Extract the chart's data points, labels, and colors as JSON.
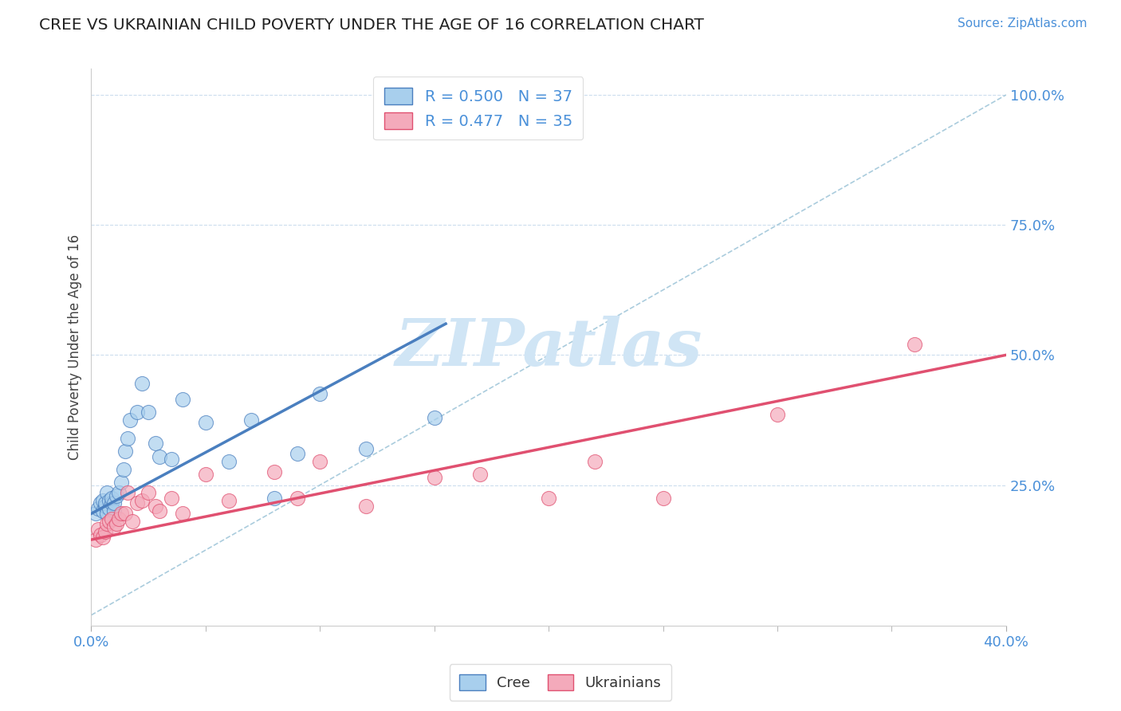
{
  "title": "CREE VS UKRAINIAN CHILD POVERTY UNDER THE AGE OF 16 CORRELATION CHART",
  "source": "Source: ZipAtlas.com",
  "ylabel": "Child Poverty Under the Age of 16",
  "xlim": [
    0.0,
    0.4
  ],
  "ylim": [
    -0.02,
    1.05
  ],
  "ytick_labels": [
    "25.0%",
    "50.0%",
    "75.0%",
    "100.0%"
  ],
  "ytick_values": [
    0.25,
    0.5,
    0.75,
    1.0
  ],
  "cree_R": 0.5,
  "cree_N": 37,
  "ukr_R": 0.477,
  "ukr_N": 35,
  "cree_color": "#A8CFED",
  "ukr_color": "#F4AABB",
  "cree_line_color": "#4A7FBF",
  "ukr_line_color": "#E05070",
  "diagonal_color": "#AACCDD",
  "watermark": "ZIPatlas",
  "watermark_color": "#D0E5F5",
  "background_color": "#FFFFFF",
  "cree_scatter_x": [
    0.002,
    0.003,
    0.004,
    0.005,
    0.005,
    0.006,
    0.006,
    0.007,
    0.007,
    0.008,
    0.008,
    0.009,
    0.009,
    0.01,
    0.01,
    0.011,
    0.012,
    0.013,
    0.014,
    0.015,
    0.016,
    0.017,
    0.02,
    0.022,
    0.025,
    0.028,
    0.03,
    0.035,
    0.04,
    0.05,
    0.06,
    0.07,
    0.08,
    0.09,
    0.1,
    0.12,
    0.15
  ],
  "cree_scatter_y": [
    0.195,
    0.205,
    0.215,
    0.22,
    0.2,
    0.21,
    0.215,
    0.235,
    0.195,
    0.205,
    0.22,
    0.215,
    0.225,
    0.2,
    0.215,
    0.23,
    0.235,
    0.255,
    0.28,
    0.315,
    0.34,
    0.375,
    0.39,
    0.445,
    0.39,
    0.33,
    0.305,
    0.3,
    0.415,
    0.37,
    0.295,
    0.375,
    0.225,
    0.31,
    0.425,
    0.32,
    0.38
  ],
  "ukr_scatter_x": [
    0.002,
    0.003,
    0.004,
    0.005,
    0.006,
    0.007,
    0.008,
    0.009,
    0.01,
    0.011,
    0.012,
    0.013,
    0.015,
    0.016,
    0.018,
    0.02,
    0.022,
    0.025,
    0.028,
    0.03,
    0.035,
    0.04,
    0.05,
    0.06,
    0.08,
    0.09,
    0.1,
    0.12,
    0.15,
    0.17,
    0.2,
    0.22,
    0.25,
    0.3,
    0.36
  ],
  "ukr_scatter_y": [
    0.145,
    0.165,
    0.155,
    0.15,
    0.16,
    0.175,
    0.18,
    0.185,
    0.17,
    0.175,
    0.185,
    0.195,
    0.195,
    0.235,
    0.18,
    0.215,
    0.22,
    0.235,
    0.21,
    0.2,
    0.225,
    0.195,
    0.27,
    0.22,
    0.275,
    0.225,
    0.295,
    0.21,
    0.265,
    0.27,
    0.225,
    0.295,
    0.225,
    0.385,
    0.52
  ],
  "cree_line_x": [
    0.0,
    0.155
  ],
  "cree_line_y": [
    0.195,
    0.56
  ],
  "ukr_line_x": [
    0.0,
    0.4
  ],
  "ukr_line_y": [
    0.145,
    0.5
  ],
  "diag_line_x": [
    0.0,
    0.4
  ],
  "diag_line_y": [
    0.0,
    1.0
  ]
}
